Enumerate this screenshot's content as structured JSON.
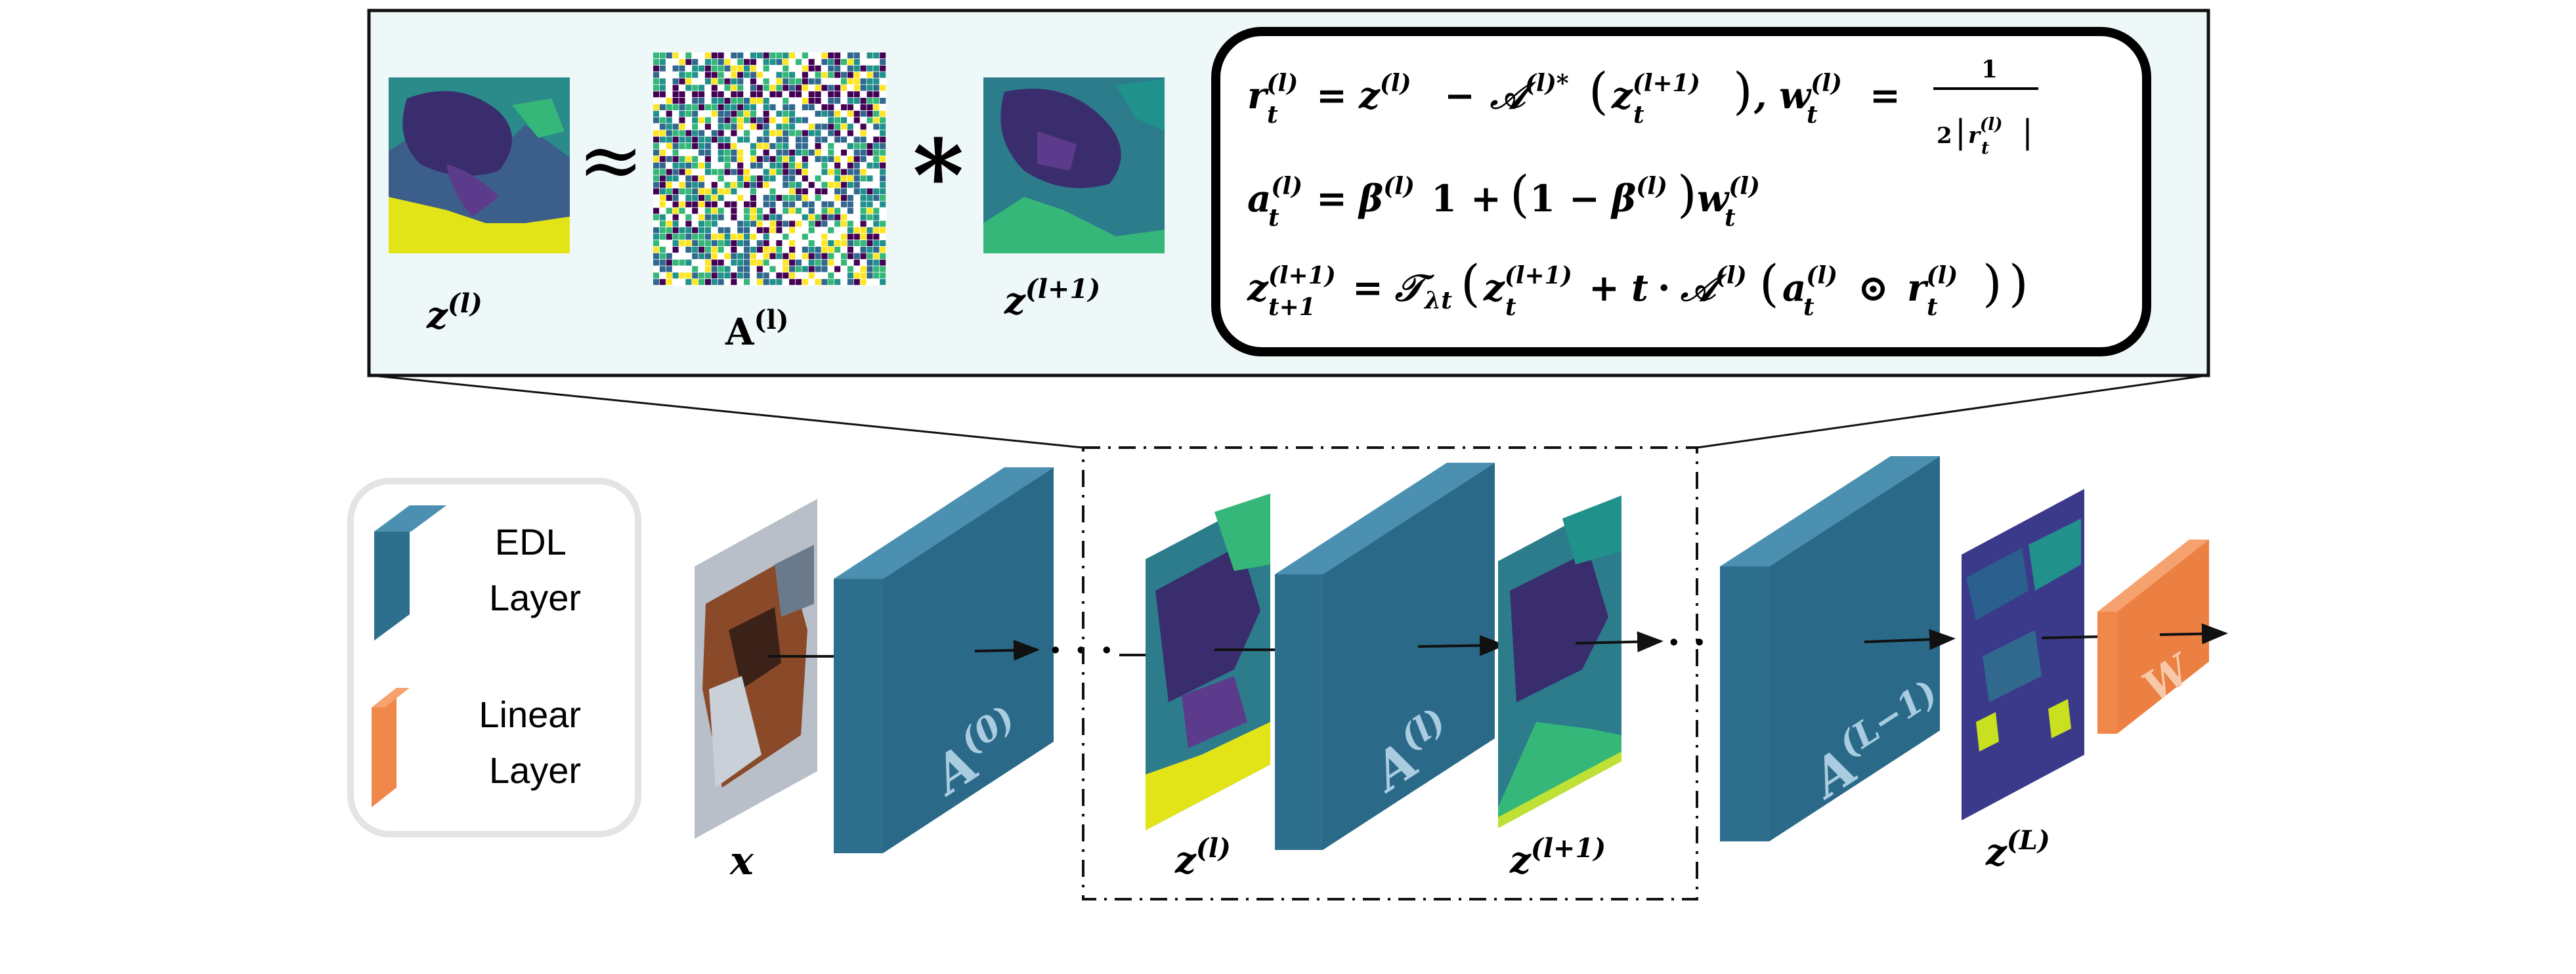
{
  "colors": {
    "panel_fill": "#eef8f8",
    "panel_border": "#111111",
    "edl_front": "#2e6f8e",
    "edl_side": "#1f4f6a",
    "edl_top": "#4b90b0",
    "linear_front": "#f0874b",
    "linear_side": "#c9642c",
    "linear_top": "#f6a26e",
    "layer_symbol": "#aacce0",
    "viridis_dark": "#440154",
    "viridis_blue": "#31688e",
    "viridis_teal": "#21918c",
    "viridis_green": "#35b779",
    "viridis_yellow": "#fde725"
  },
  "panel": {
    "approx_symbol": "≈",
    "conv_symbol": "*",
    "labels": {
      "z_l": {
        "base": "z",
        "sup": "(l)"
      },
      "A_l": {
        "base": "A",
        "sup": "(l)"
      },
      "z_l1": {
        "base": "z",
        "sup": "(l+1)"
      }
    },
    "equations": {
      "eq1": {
        "r": "r",
        "r_sub": "t",
        "r_sup": "(l)",
        "eq": "=",
        "z": "z",
        "z_sup": "(l)",
        "minus": "−",
        "op": "𝒜",
        "op_sup": "(l)*",
        "lp": "(",
        "z2": "z",
        "z2_sub": "t",
        "z2_sup": "(l+1)",
        "rp": ")",
        "comma": ",",
        "w": "w",
        "w_sub": "t",
        "w_sup": "(l)",
        "eq2": "=",
        "numerator": "1",
        "den_two": "2",
        "den_bar_l": "|",
        "den_r": "r",
        "den_r_sub": "t",
        "den_r_sup": "(l)",
        "den_bar_r": "|"
      },
      "eq2": {
        "a": "a",
        "a_sub": "t",
        "a_sup": "(l)",
        "eq": "=",
        "beta": "β",
        "beta_sup": "(l)",
        "one": "1",
        "plus": "+",
        "lp": "(",
        "one2": "1",
        "minus": "−",
        "beta2": "β",
        "beta2_sup": "(l)",
        "rp": ")",
        "w": "w",
        "w_sub": "t",
        "w_sup": "(l)"
      },
      "eq3": {
        "z": "z",
        "z_sub": "t+1",
        "z_sup": "(l+1)",
        "eq": "=",
        "T": "𝒯",
        "T_sub": "λt",
        "lp": "(",
        "z2": "z",
        "z2_sub": "t",
        "z2_sup": "(l+1)",
        "plus": "+",
        "t": "t",
        "dot": "·",
        "op": "𝒜",
        "op_sup": "(l)",
        "lp2": "(",
        "a": "a",
        "a_sub": "t",
        "a_sup": "(l)",
        "odot": "⊙",
        "r": "r",
        "r_sub": "t",
        "r_sup": "(l)",
        "rp2": ")",
        "rp": ")"
      }
    }
  },
  "legend": {
    "edl_label_line1": "EDL",
    "edl_label_line2": "Layer",
    "linear_label_line1": "Linear",
    "linear_label_line2": "Layer"
  },
  "pipeline": {
    "input_label": "x",
    "dots": "· · ·",
    "layer_A0": {
      "base": "A",
      "sup": "(0)"
    },
    "layer_Al": {
      "base": "A",
      "sup": "(l)"
    },
    "layer_AL1": {
      "base": "A",
      "sup": "(L−1)"
    },
    "linear_W": "W",
    "z_l": {
      "base": "z",
      "sup": "(l)"
    },
    "z_l1": {
      "base": "z",
      "sup": "(l+1)"
    },
    "z_L": {
      "base": "z",
      "sup": "(L)"
    }
  }
}
